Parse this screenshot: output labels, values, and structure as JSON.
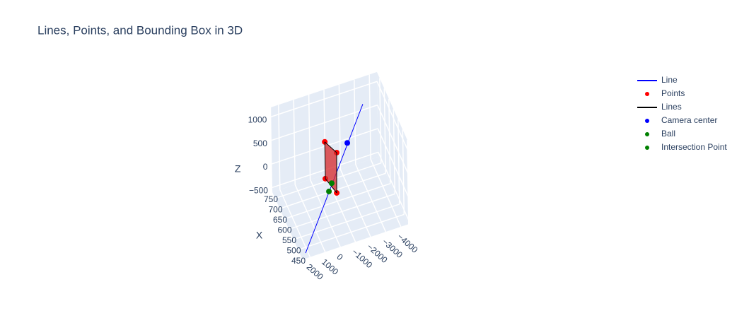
{
  "chart_data": {
    "type": "scatter3d",
    "title": "Lines, Points, and Bounding Box in 3D",
    "xaxis_title": "X",
    "zaxis_title": "Z",
    "xlim": [
      450,
      780
    ],
    "ylim": [
      2500,
      -4500
    ],
    "zlim": [
      -600,
      1200
    ],
    "xticks": [
      450,
      500,
      550,
      600,
      650,
      700,
      750
    ],
    "yticks": [
      {
        "value": -4000,
        "label": "−4000"
      },
      {
        "value": -3000,
        "label": "−3000"
      },
      {
        "value": -2000,
        "label": "−2000"
      },
      {
        "value": -1000,
        "label": "−1000"
      },
      0,
      1000,
      2000
    ],
    "zticks": [
      {
        "value": -500,
        "label": "−500"
      },
      0,
      500,
      1000
    ],
    "grid": true,
    "background": "#e5ecf6",
    "series": [
      {
        "name": "Line",
        "mode": "lines",
        "color": "#0000ff",
        "x": [
          600,
          600
        ],
        "y": [
          1430,
          -2490
        ],
        "z": [
          -1220,
          1520
        ]
      },
      {
        "name": "Points",
        "mode": "markers",
        "color": "#ff0000",
        "x": [
          600,
          600,
          600,
          600
        ],
        "y": [
          50,
          -720,
          50,
          -680
        ],
        "z": [
          990,
          680,
          210,
          -170
        ]
      },
      {
        "name": "Lines",
        "mode": "lines",
        "color": "#000000",
        "fill_color": "#d62728",
        "x": [
          600,
          600,
          600,
          600,
          600
        ],
        "y": [
          50,
          -720,
          -680,
          50,
          50
        ],
        "z": [
          990,
          680,
          -170,
          210,
          990
        ]
      },
      {
        "name": "Camera center",
        "mode": "markers",
        "color": "#0000ff",
        "x": [
          600
        ],
        "y": [
          -1430
        ],
        "z": [
          810
        ]
      },
      {
        "name": "Ball",
        "mode": "markers",
        "color": "#008000",
        "x": [
          600
        ],
        "y": [
          -360
        ],
        "z": [
          70
        ]
      },
      {
        "name": "Intersection Point",
        "mode": "markers",
        "color": "#008000",
        "x": [
          600
        ],
        "y": [
          -170
        ],
        "z": [
          -85
        ]
      }
    ]
  }
}
